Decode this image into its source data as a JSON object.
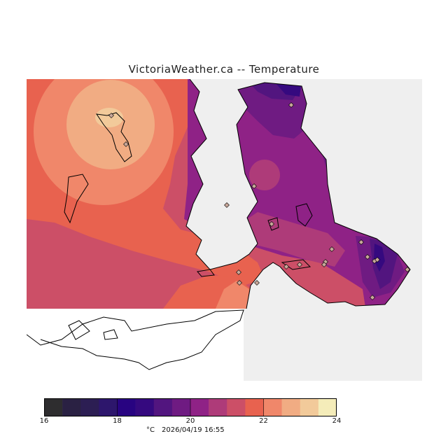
{
  "title": "VictoriaWeather.ca -- Temperature",
  "map": {
    "region": "Greater Victoria / Southern Vancouver Island & Gulf Islands",
    "variable": "Temperature",
    "colors": {
      "ocean": "#efefef",
      "coastline": "#000000",
      "no_data": "#ffffff",
      "station_marker": "#c9a89a"
    },
    "stations_count": 20
  },
  "colorbar": {
    "unit": "°C",
    "min": 16,
    "max": 24,
    "step": 0.5,
    "tick_labels": [
      "16",
      "18",
      "20",
      "22",
      "24"
    ],
    "colors": [
      "#2e2d2f",
      "#2a2143",
      "#2c1e53",
      "#2d166c",
      "#280381",
      "#35097f",
      "#52157f",
      "#6f1b82",
      "#8f2286",
      "#ae3b79",
      "#cc4f67",
      "#e8624f",
      "#f0876a",
      "#f1ac83",
      "#f2ca9a",
      "#f4ecb9"
    ]
  },
  "footer": {
    "unit_label": "°C",
    "timestamp": "2026/04/19 16:55"
  }
}
